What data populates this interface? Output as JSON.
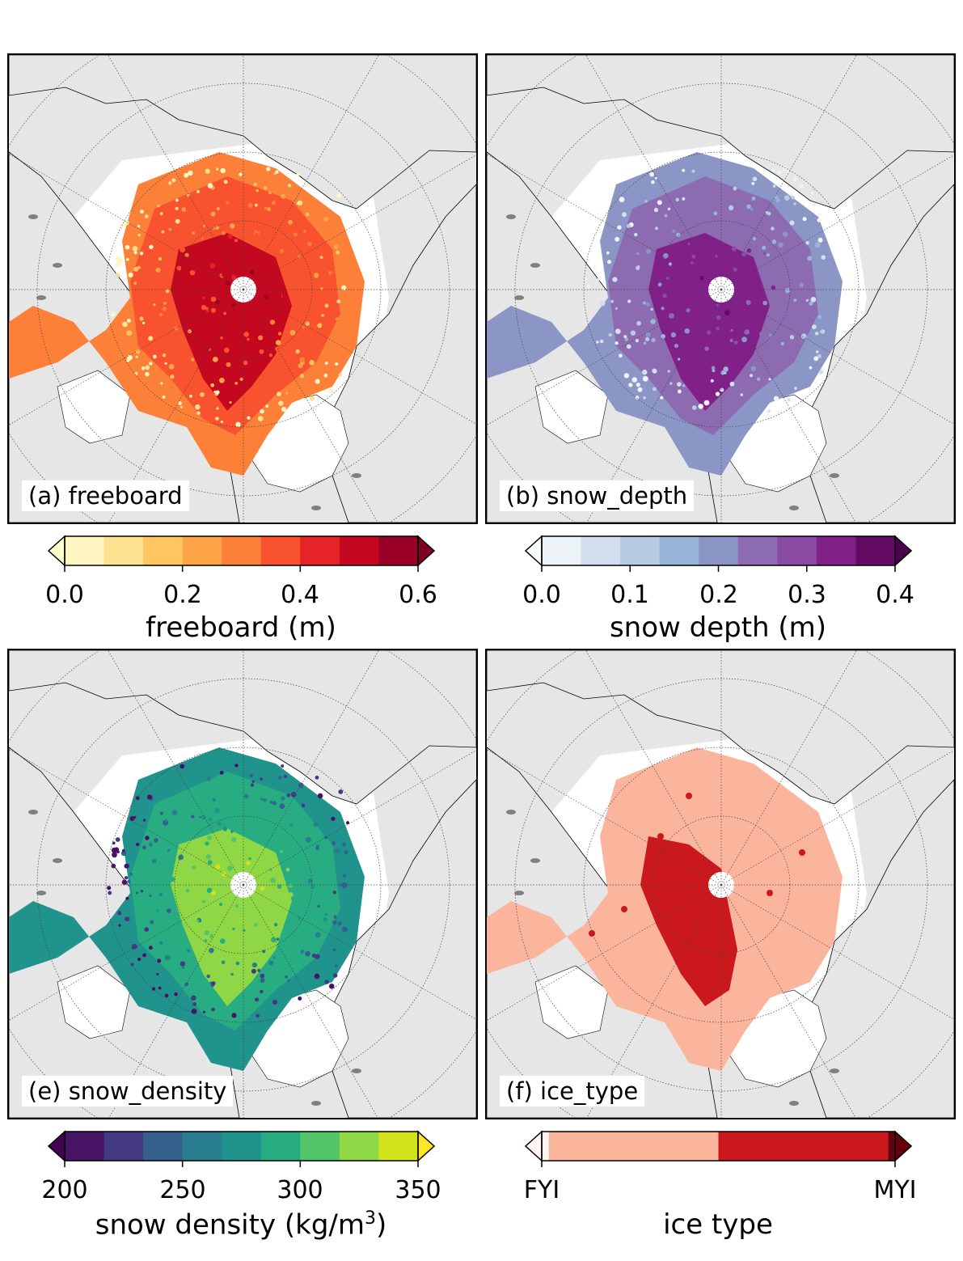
{
  "panels": [
    {
      "id": "a",
      "label": "(a) freeboard",
      "type": "continuous",
      "colorbar": {
        "title": "freeboard (m)",
        "ticks": [
          "0.0",
          "0.2",
          "0.4",
          "0.6"
        ],
        "min": 0,
        "max": 0.6,
        "colors": [
          "#fff5c1",
          "#fee291",
          "#fec560",
          "#fda447",
          "#fc8038",
          "#f9522f",
          "#e62326",
          "#c4081f",
          "#9a0026"
        ],
        "under": "#ffffcc",
        "over": "#800026"
      }
    },
    {
      "id": "b",
      "label": "(b) snow_depth",
      "type": "continuous",
      "colorbar": {
        "title": "snow depth (m)",
        "ticks": [
          "0.0",
          "0.1",
          "0.2",
          "0.3",
          "0.4"
        ],
        "min": 0,
        "max": 0.4,
        "colors": [
          "#eef3f8",
          "#d3dfee",
          "#b7cbe3",
          "#98b5d9",
          "#8c96c6",
          "#8c6bb1",
          "#8c4ba3",
          "#82208a",
          "#640a64"
        ],
        "under": "#f7fcfd",
        "over": "#4d004b"
      }
    },
    {
      "id": "e",
      "label": "(e) snow_density",
      "type": "continuous",
      "colorbar": {
        "title": "snow density (kg/m",
        "title_sup": "3",
        "title_end": ")",
        "ticks": [
          "200",
          "250",
          "300",
          "350"
        ],
        "min": 200,
        "max": 350,
        "colors": [
          "#471465",
          "#443a83",
          "#355f8d",
          "#287d8e",
          "#20938c",
          "#27ad81",
          "#52c569",
          "#8fd744",
          "#d2e21b"
        ],
        "under": "#440154",
        "over": "#fde725"
      }
    },
    {
      "id": "f",
      "label": "(f) ice_type",
      "type": "categorical",
      "colorbar": {
        "title": "ice type",
        "ticks": [
          "FYI",
          "MYI"
        ],
        "colors": [
          "#fbb59d",
          "#cb181d"
        ],
        "under": "#fff5f0",
        "over": "#67000d"
      }
    }
  ],
  "map_style": {
    "land": "#e6e6e6",
    "ocean": "#ffffff",
    "lakes": "#808080",
    "coast": "#000000",
    "grid": "#444444"
  }
}
